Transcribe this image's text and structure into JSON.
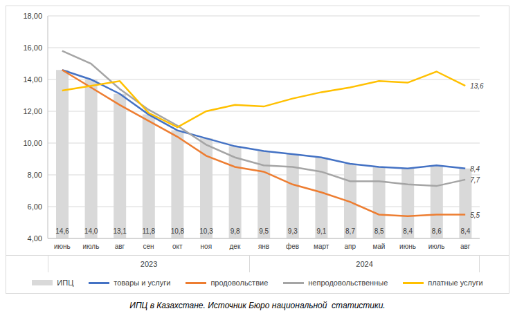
{
  "chart_data": {
    "type": "bar",
    "caption": "ИПЦ в Казахстане. Источник Бюро национальной  статистики.",
    "categories": [
      "июнь",
      "июль",
      "авг",
      "сен",
      "окт",
      "ноя",
      "дек",
      "янв",
      "фев",
      "март",
      "апр",
      "май",
      "июнь",
      "июль",
      "авг"
    ],
    "x_groups": [
      {
        "label": "2023",
        "start": 0,
        "end": 6
      },
      {
        "label": "2024",
        "start": 7,
        "end": 14
      }
    ],
    "ylim": [
      4,
      18
    ],
    "yticks": [
      {
        "value": 4,
        "label": "4,00"
      },
      {
        "value": 6,
        "label": "6,00"
      },
      {
        "value": 8,
        "label": "8,00"
      },
      {
        "value": 10,
        "label": "10,00"
      },
      {
        "value": 12,
        "label": "12,00"
      },
      {
        "value": 14,
        "label": "14,00"
      },
      {
        "value": 16,
        "label": "16,00"
      },
      {
        "value": 18,
        "label": "18,00"
      }
    ],
    "grid": true,
    "legend": "bottom",
    "series": [
      {
        "name": "ИПЦ",
        "type": "bar",
        "color": "#d9d9d9",
        "values": [
          14.6,
          14.0,
          13.1,
          11.8,
          10.8,
          10.3,
          9.8,
          9.5,
          9.3,
          9.1,
          8.7,
          8.5,
          8.4,
          8.6,
          8.4
        ],
        "value_labels": [
          "14,6",
          "14,0",
          "13,1",
          "11,8",
          "10,8",
          "10,3",
          "9,8",
          "9,5",
          "9,3",
          "9,1",
          "8,7",
          "8,5",
          "8,4",
          "8,6",
          "8,4"
        ]
      },
      {
        "name": "товары и услуги",
        "type": "line",
        "color": "#4472c4",
        "values": [
          14.6,
          14.0,
          13.1,
          11.8,
          10.8,
          10.3,
          9.8,
          9.5,
          9.3,
          9.1,
          8.7,
          8.5,
          8.4,
          8.6,
          8.4
        ],
        "value_labels": [
          null,
          null,
          null,
          null,
          null,
          null,
          null,
          null,
          null,
          null,
          null,
          null,
          null,
          null,
          "8,4"
        ]
      },
      {
        "name": "продовольствие",
        "type": "line",
        "color": "#ed7d31",
        "values": [
          14.6,
          13.5,
          12.4,
          11.4,
          10.4,
          9.2,
          8.5,
          8.2,
          7.4,
          6.9,
          6.3,
          5.5,
          5.4,
          5.5,
          5.5
        ],
        "value_labels": [
          null,
          null,
          null,
          null,
          null,
          null,
          null,
          null,
          null,
          null,
          null,
          null,
          null,
          null,
          "5,5"
        ]
      },
      {
        "name": "непродовольственные",
        "type": "line",
        "color": "#a5a5a5",
        "values": [
          15.8,
          15.0,
          13.4,
          12.1,
          11.1,
          9.9,
          9.1,
          8.6,
          8.5,
          8.2,
          7.6,
          7.6,
          7.4,
          7.3,
          7.7
        ],
        "value_labels": [
          null,
          null,
          null,
          null,
          null,
          null,
          null,
          null,
          null,
          null,
          null,
          null,
          null,
          null,
          "7,7"
        ]
      },
      {
        "name": "платные услуги",
        "type": "line",
        "color": "#ffc000",
        "values": [
          13.3,
          13.6,
          13.9,
          11.9,
          11.0,
          12.0,
          12.4,
          12.3,
          12.8,
          13.2,
          13.5,
          13.9,
          13.8,
          14.5,
          13.6
        ],
        "value_labels": [
          null,
          null,
          null,
          null,
          null,
          null,
          null,
          null,
          null,
          null,
          null,
          null,
          null,
          null,
          "13,6"
        ]
      }
    ]
  }
}
